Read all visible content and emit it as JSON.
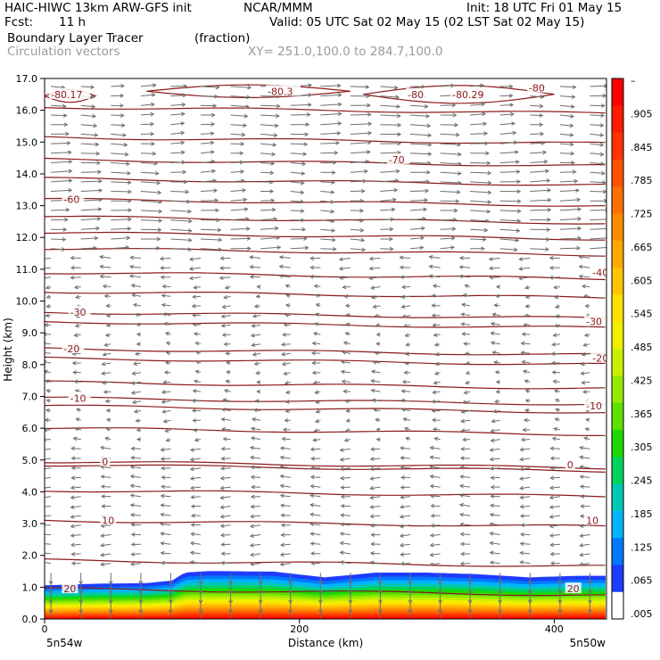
{
  "header": {
    "model": "HAIC-HIWC 13km ARW-GFS init",
    "org": "NCAR/MMM",
    "init": "Init: 18 UTC Fri 01 May 15",
    "fcst_label": "Fcst:",
    "fcst_value": "11 h",
    "valid": "Valid: 05 UTC Sat 02 May 15 (02 LST Sat 02 May 15)",
    "field": "Boundary Layer Tracer",
    "field_units": "(fraction)",
    "overlay": "Circulation vectors",
    "xy_range": "XY= 251.0,100.0 to 284.7,100.0"
  },
  "chart_data": {
    "type": "heatmap",
    "title": "Boundary Layer Tracer",
    "xlabel": "Distance (km)",
    "ylabel": "Height (km)",
    "xlim": [
      0,
      441
    ],
    "ylim": [
      0,
      17
    ],
    "x_ticks": [
      0,
      200,
      400
    ],
    "x_tick_labels": [
      "0",
      "200",
      "400"
    ],
    "y_ticks": [
      0,
      1,
      2,
      3,
      4,
      5,
      6,
      7,
      8,
      9,
      10,
      11,
      12,
      13,
      14,
      15,
      16,
      17
    ],
    "y_tick_labels": [
      "0.0",
      "1.0",
      "2.0",
      "3.0",
      "4.0",
      "5.0",
      "6.0",
      "7.0",
      "8.0",
      "9.0",
      "10.0",
      "11.0",
      "12.0",
      "13.0",
      "14.0",
      "15.0",
      "16.0",
      "17.0"
    ],
    "x_endpoints": {
      "left": "5n54w",
      "right": "5n50w"
    },
    "colorbar": {
      "labels": [
        "–",
        ".905",
        ".845",
        ".785",
        ".725",
        ".665",
        ".605",
        ".545",
        ".485",
        ".425",
        ".365",
        ".305",
        ".245",
        ".185",
        ".125",
        ".065",
        ".005"
      ],
      "colors": [
        "#ff0000",
        "#ff1a00",
        "#ff3300",
        "#ff5200",
        "#ff7000",
        "#ff8c00",
        "#ffa800",
        "#ffc400",
        "#ffe000",
        "#f0f000",
        "#c8f000",
        "#96ea00",
        "#5ce000",
        "#1ed800",
        "#00d25a",
        "#00c8b4",
        "#00b4ff",
        "#0078ff",
        "#1e3cff",
        "#ffffff"
      ]
    },
    "tracer_boundary": {
      "x_km": [
        0,
        40,
        80,
        100,
        110,
        130,
        180,
        220,
        260,
        300,
        340,
        380,
        420,
        441
      ],
      "top_km": [
        1.05,
        1.1,
        1.12,
        1.2,
        1.45,
        1.5,
        1.48,
        1.3,
        1.45,
        1.45,
        1.4,
        1.3,
        1.35,
        1.35
      ]
    },
    "temperature_contours": [
      {
        "value": -80,
        "label": "-80.3",
        "z_km": 16.6,
        "x_label_km": 175
      },
      {
        "value": -80,
        "label": "-80",
        "z_km": 16.5,
        "x_label_km": 285
      },
      {
        "value": -80,
        "label": "-80.29",
        "z_km": 16.5,
        "x_label_km": 320
      },
      {
        "value": -80,
        "label": "-80",
        "z_km": 16.7,
        "x_label_km": 380
      },
      {
        "value": -80,
        "label": "-80.17",
        "z_km": 16.5,
        "x_label_km": 5
      },
      {
        "value": -70,
        "label": "-70",
        "z_km": 14.45,
        "x_label_km": 270
      },
      {
        "value": -60,
        "label": "-60",
        "z_km": 13.2,
        "x_label_km": 15
      },
      {
        "value": -40,
        "label": "-40",
        "z_km": 10.9,
        "x_label_km": 430
      },
      {
        "value": -30,
        "label": "-30",
        "z_km": 9.65,
        "x_label_km": 20
      },
      {
        "value": -30,
        "label": "-30",
        "z_km": 9.35,
        "x_label_km": 425
      },
      {
        "value": -20,
        "label": "-20",
        "z_km": 8.5,
        "x_label_km": 15
      },
      {
        "value": -20,
        "label": "-20",
        "z_km": 8.2,
        "x_label_km": 430
      },
      {
        "value": -10,
        "label": "-10",
        "z_km": 6.95,
        "x_label_km": 20
      },
      {
        "value": -10,
        "label": "-10",
        "z_km": 6.7,
        "x_label_km": 425
      },
      {
        "value": 0,
        "label": "0",
        "z_km": 4.95,
        "x_label_km": 45
      },
      {
        "value": 0,
        "label": "0",
        "z_km": 4.85,
        "x_label_km": 410
      },
      {
        "value": 10,
        "label": "10",
        "z_km": 3.1,
        "x_label_km": 45
      },
      {
        "value": 10,
        "label": "10",
        "z_km": 3.1,
        "x_label_km": 425
      },
      {
        "value": 20,
        "label": "20",
        "z_km": 0.95,
        "x_label_km": 15
      },
      {
        "value": 20,
        "label": "20",
        "z_km": 0.95,
        "x_label_km": 410
      }
    ],
    "unlabeled_contour_levels_km": [
      16.1,
      15.15,
      13.85,
      12.65,
      12.15,
      11.65,
      10.3,
      7.45,
      6.0,
      4.05,
      1.85
    ]
  }
}
